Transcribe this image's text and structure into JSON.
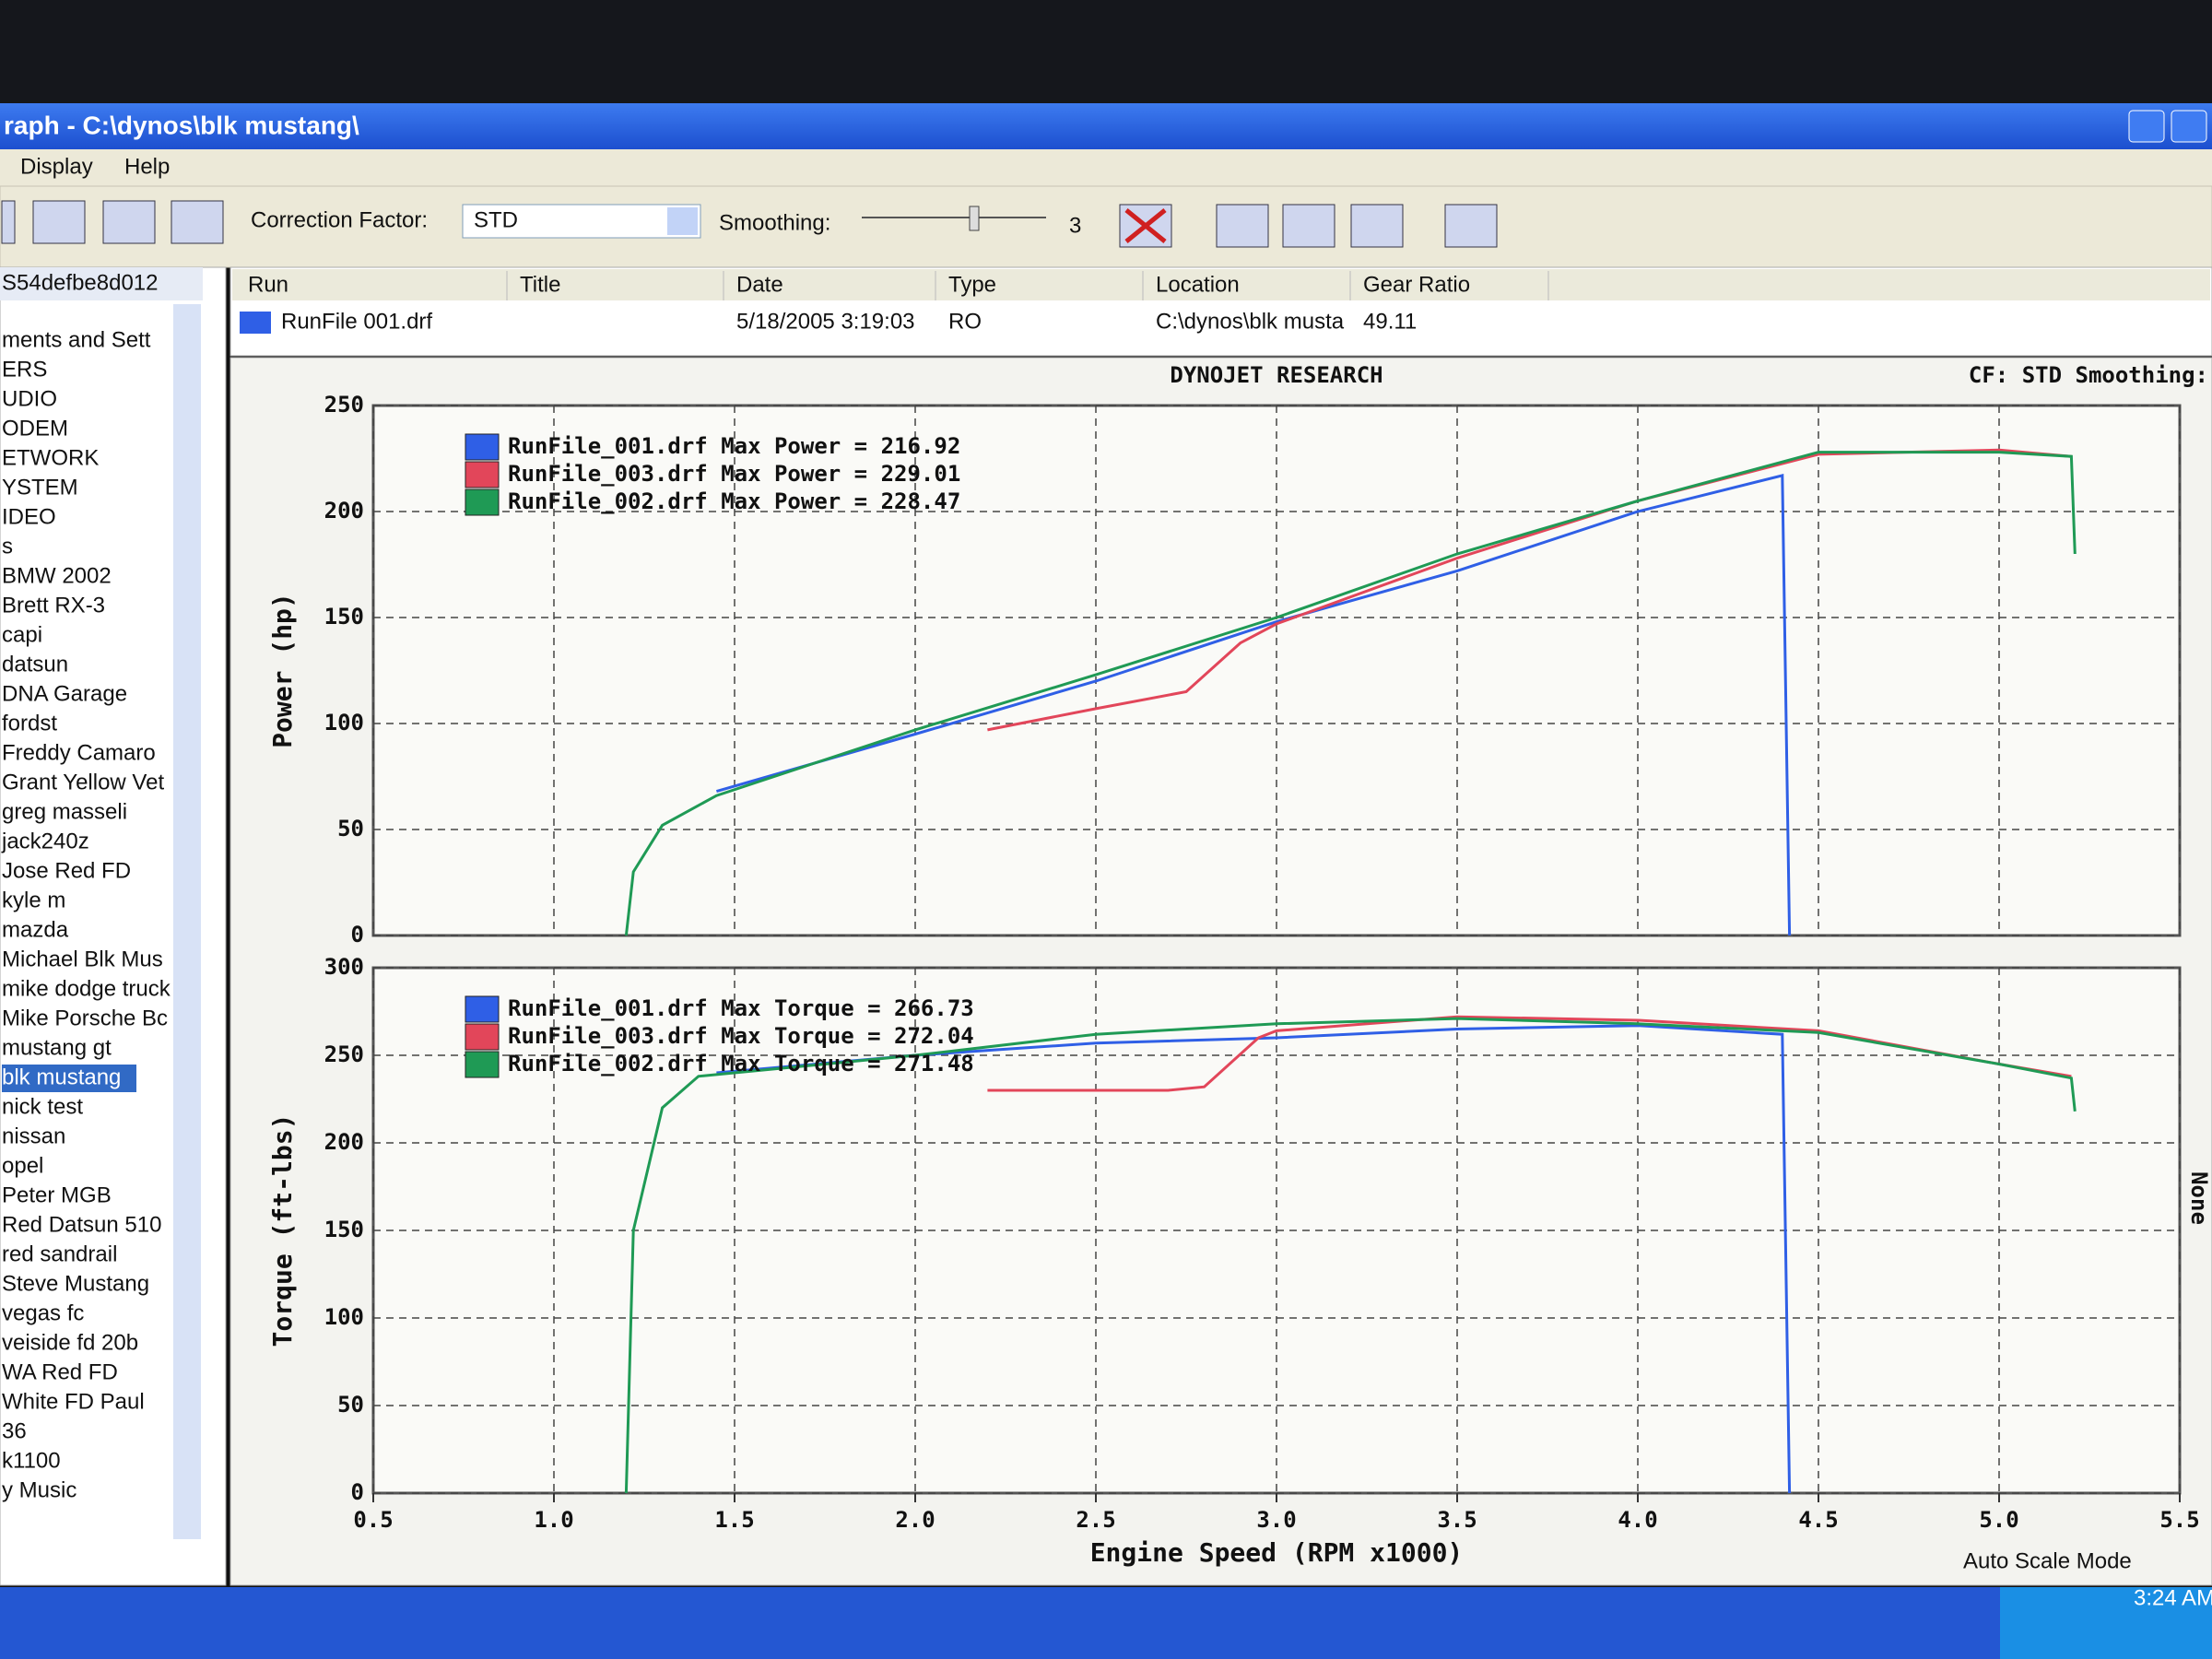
{
  "window": {
    "title": "raph - C:\\dynos\\blk mustang\\"
  },
  "menu": [
    "Display",
    "Help"
  ],
  "toolbar": {
    "correction_label": "Correction Factor:",
    "correction_value": "STD",
    "smoothing_label": "Smoothing:",
    "smoothing_value": "3"
  },
  "tree": {
    "header": "S54defbe8d012",
    "selected_index": 25,
    "items": [
      "ments and Sett",
      "ERS",
      "UDIO",
      "ODEM",
      "ETWORK",
      "YSTEM",
      "IDEO",
      "s",
      "BMW 2002",
      "Brett RX-3",
      "capi",
      "datsun",
      "DNA Garage",
      "fordst",
      "Freddy Camaro",
      "Grant Yellow Vet",
      "greg masseli",
      "jack240z",
      "Jose Red FD",
      "kyle m",
      "mazda",
      "Michael Blk Mus",
      "mike dodge truck",
      "Mike Porsche Bc",
      "mustang gt",
      "blk mustang",
      "nick test",
      "nissan",
      "opel",
      "Peter MGB",
      "Red Datsun 510",
      "red sandrail",
      "Steve Mustang",
      "vegas fc",
      "veiside fd 20b",
      "WA Red FD",
      "White FD Paul",
      "36",
      "k1100",
      "y Music"
    ]
  },
  "run_table": {
    "columns": [
      "Run",
      "Title",
      "Date",
      "Type",
      "Location",
      "Gear Ratio"
    ],
    "rows": [
      [
        "RunFile 001.drf",
        "",
        "5/18/2005 3:19:03",
        "RO",
        "C:\\dynos\\blk musta",
        "49.11"
      ]
    ]
  },
  "chart_header": {
    "title": "DYNOJET RESEARCH",
    "right": "CF: STD  Smoothing:"
  },
  "side_label": "None",
  "status": {
    "mode": "Auto Scale Mode",
    "clock": "3:24 AM"
  },
  "chart_data": [
    {
      "type": "line",
      "ylabel": "Power (hp)",
      "xlim": [
        0.5,
        5.5
      ],
      "xticks": [
        0.5,
        1,
        1.5,
        2,
        2.5,
        3,
        3.5,
        4,
        4.5,
        5,
        5.5
      ],
      "ylim": [
        0,
        250
      ],
      "yticks": [
        0,
        50,
        100,
        150,
        200,
        250
      ],
      "grid": true,
      "series": [
        {
          "name": "RunFile_001.drf Max Power = 216.92",
          "color": "#2f5fe6",
          "x": [
            1.45,
            2.0,
            2.5,
            3.0,
            3.5,
            4.0,
            4.4,
            4.42
          ],
          "values": [
            68,
            95,
            120,
            148,
            172,
            200,
            217,
            0
          ]
        },
        {
          "name": "RunFile_003.drf Max Power = 229.01",
          "color": "#e2465a",
          "x": [
            2.2,
            2.5,
            2.75,
            2.9,
            3.0,
            3.5,
            4.0,
            4.5,
            5.0,
            5.2
          ],
          "values": [
            97,
            107,
            115,
            138,
            147,
            178,
            205,
            227,
            229,
            226
          ]
        },
        {
          "name": "RunFile_002.drf Max Power = 228.47",
          "color": "#1f9a55",
          "x": [
            1.2,
            1.22,
            1.3,
            1.45,
            2.0,
            2.5,
            3.0,
            3.5,
            4.0,
            4.5,
            5.0,
            5.2,
            5.21
          ],
          "values": [
            0,
            30,
            52,
            66,
            97,
            123,
            150,
            180,
            205,
            228,
            228,
            226,
            180
          ]
        }
      ]
    },
    {
      "type": "line",
      "ylabel": "Torque (ft-lbs)",
      "xlabel": "Engine Speed (RPM x1000)",
      "xlim": [
        0.5,
        5.5
      ],
      "xticks": [
        0.5,
        {
          "value": 1,
          "label": "1.0"
        },
        1.5,
        {
          "value": 2,
          "label": "2.0"
        },
        2.5,
        {
          "value": 3,
          "label": "3.0"
        },
        3.5,
        {
          "value": 4,
          "label": "4.0"
        },
        4.5,
        {
          "value": 5,
          "label": "5.0"
        },
        5.5
      ],
      "ylim": [
        0,
        300
      ],
      "yticks": [
        0,
        50,
        100,
        150,
        200,
        250,
        300
      ],
      "grid": true,
      "series": [
        {
          "name": "RunFile_001.drf Max Torque = 266.73",
          "color": "#2f5fe6",
          "x": [
            1.45,
            2.0,
            2.5,
            3.0,
            3.5,
            4.0,
            4.4,
            4.42
          ],
          "values": [
            240,
            250,
            257,
            260,
            265,
            267,
            262,
            0
          ]
        },
        {
          "name": "RunFile_003.drf Max Torque = 272.04",
          "color": "#e2465a",
          "x": [
            2.2,
            2.7,
            2.8,
            2.95,
            3.0,
            3.5,
            4.0,
            4.5,
            5.0,
            5.2
          ],
          "values": [
            230,
            230,
            232,
            260,
            264,
            272,
            270,
            264,
            245,
            238
          ]
        },
        {
          "name": "RunFile_002.drf Max Torque = 271.48",
          "color": "#1f9a55",
          "x": [
            1.2,
            1.22,
            1.3,
            1.4,
            2.0,
            2.5,
            3.0,
            3.5,
            4.0,
            4.5,
            5.0,
            5.2,
            5.21
          ],
          "values": [
            0,
            150,
            220,
            238,
            250,
            262,
            268,
            271,
            268,
            263,
            245,
            237,
            218
          ]
        }
      ]
    }
  ]
}
